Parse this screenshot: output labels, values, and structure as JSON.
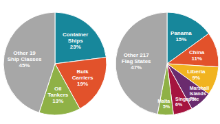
{
  "chart_data": [
    {
      "type": "pie",
      "categories": [
        "Container Ships",
        "Bulk Carriers",
        "Oil Tankers",
        "Other 19 Ship Classes"
      ],
      "values": [
        23,
        19,
        13,
        45
      ],
      "value_labels": [
        "23%",
        "19%",
        "13%",
        "45%"
      ],
      "colors": [
        "#17879b",
        "#e2522b",
        "#8fb146",
        "#a7a7a7"
      ],
      "data_labels": true
    },
    {
      "type": "pie",
      "categories": [
        "Panama",
        "China",
        "Liberia",
        "Marshall Islands",
        "Singapore",
        "Malta",
        "Other 217 Flag States"
      ],
      "values": [
        15,
        11,
        9,
        7,
        6,
        5,
        47
      ],
      "value_labels": [
        "15%",
        "11%",
        "9%",
        "7%",
        "6%",
        "5%",
        "47%"
      ],
      "colors": [
        "#17879b",
        "#e2522b",
        "#f1b320",
        "#6a2b6e",
        "#a5143f",
        "#8fb146",
        "#a7a7a7"
      ],
      "data_labels": true
    }
  ]
}
